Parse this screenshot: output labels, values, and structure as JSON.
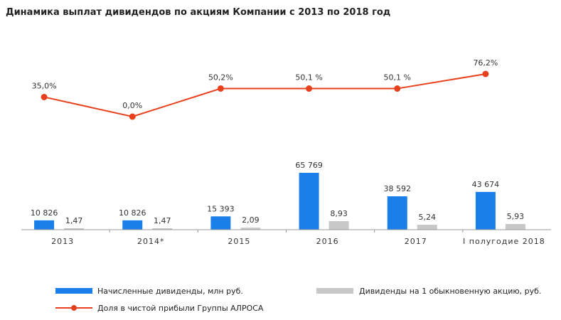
{
  "title": "Динамика выплат дивидендов по акциям Компании с 2013 по 2018 год",
  "chart_data": {
    "type": "bar",
    "title": "Динамика выплат дивидендов по акциям Компании с 2013 по 2018 год",
    "categories": [
      "2013",
      "2014*",
      "2015",
      "2016",
      "2017",
      "I  полугодие 2018"
    ],
    "series": [
      {
        "name": "Начисленные дивиденды, млн руб.",
        "type": "bar",
        "color": "#1a7fe8",
        "values": [
          10826,
          10826,
          15393,
          65769,
          38592,
          43674
        ],
        "labels": [
          "10 826",
          "10 826",
          "15 393",
          "65 769",
          "38 592",
          "43 674"
        ]
      },
      {
        "name": "Дивиденды на 1  обыкновенную акцию, руб.",
        "type": "bar",
        "color": "#c8c8c8",
        "values": [
          1.47,
          1.47,
          2.09,
          8.93,
          5.24,
          5.93
        ],
        "labels": [
          "1,47",
          "1,47",
          "2,09",
          "8,93",
          "5,24",
          "5,93"
        ]
      },
      {
        "name": "Доля в чистой прибыли Группы АЛРОСА",
        "type": "line",
        "color": "#e8401c",
        "values": [
          35.0,
          0.0,
          50.2,
          50.1,
          50.1,
          76.2
        ],
        "labels": [
          "35,0%",
          "0,0%",
          "50,2%",
          "50,1 %",
          "50,1 %",
          "76,2%"
        ]
      }
    ],
    "legend_position": "bottom-left"
  }
}
